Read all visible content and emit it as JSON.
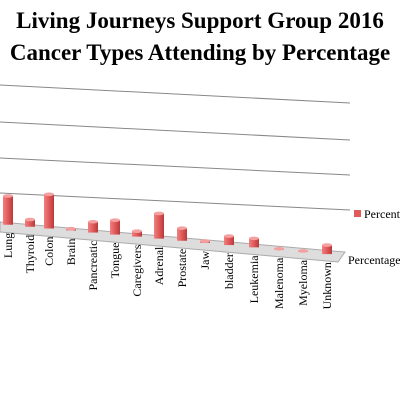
{
  "chart_data": {
    "type": "bar3d",
    "title": "Living Journeys Support Group 2016 Cancer Types Attending by Percentage",
    "title_lines": [
      "Living Journeys Support Group 2016",
      "Cancer Types Attending by Percentage"
    ],
    "categories": [
      "Lung",
      "Thyroid",
      "Colon",
      "Brain",
      "Pancreatic",
      "Tongue",
      "Caregivers",
      "Adrenal",
      "Prostate",
      "Jaw",
      "bladder",
      "Leukemia",
      "Malenoma",
      "Myeloma",
      "Unknown"
    ],
    "series": [
      {
        "name": "Percentage",
        "color": "#e05a5a",
        "values": [
          16,
          4,
          19,
          1,
          6,
          8,
          3,
          14,
          7,
          1,
          5,
          5,
          0.5,
          0.5,
          5
        ]
      }
    ],
    "ylim": [
      0,
      100
    ],
    "grid": true,
    "legend": "right"
  }
}
